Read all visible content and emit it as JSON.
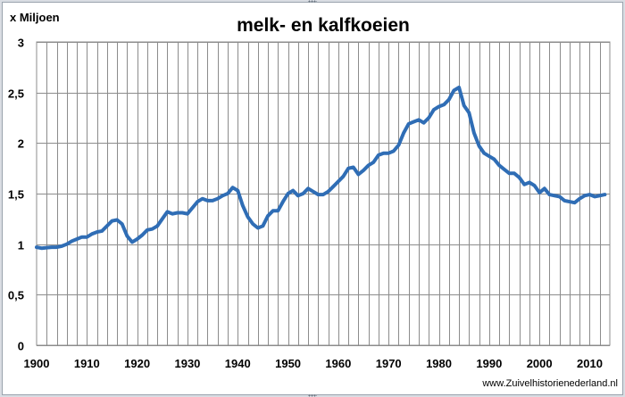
{
  "chart_data": {
    "type": "line",
    "title": "melk- en kalfkoeien",
    "unit_label": "x Miljoen",
    "ylim": [
      0,
      3
    ],
    "yticks": [
      "0",
      "0,5",
      "1",
      "1,5",
      "2",
      "2,5",
      "3"
    ],
    "xlim": [
      1900,
      2014
    ],
    "xticks": [
      "1900",
      "1910",
      "1920",
      "1930",
      "1940",
      "1950",
      "1960",
      "1970",
      "1980",
      "1990",
      "2000",
      "2010"
    ],
    "grid": true,
    "line_color": "#2f6db5",
    "series": [
      {
        "x": [
          1900,
          1901,
          1902,
          1903,
          1904,
          1905,
          1906,
          1907,
          1908,
          1909,
          1910,
          1911,
          1912,
          1913,
          1914,
          1915,
          1916,
          1917,
          1918,
          1919,
          1920,
          1921,
          1922,
          1923,
          1924,
          1925,
          1926,
          1927,
          1928,
          1929,
          1930,
          1931,
          1932,
          1933,
          1934,
          1935,
          1936,
          1937,
          1938,
          1939,
          1940,
          1941,
          1942,
          1943,
          1944,
          1945,
          1946,
          1947,
          1948,
          1949,
          1950,
          1951,
          1952,
          1953,
          1954,
          1955,
          1956,
          1957,
          1958,
          1959,
          1960,
          1961,
          1962,
          1963,
          1964,
          1965,
          1966,
          1967,
          1968,
          1969,
          1970,
          1971,
          1972,
          1973,
          1974,
          1975,
          1976,
          1977,
          1978,
          1979,
          1980,
          1981,
          1982,
          1983,
          1984,
          1985,
          1986,
          1987,
          1988,
          1989,
          1990,
          1991,
          1992,
          1993,
          1994,
          1995,
          1996,
          1997,
          1998,
          1999,
          2000,
          2001,
          2002,
          2003,
          2004,
          2005,
          2006,
          2007,
          2008,
          2009,
          2010,
          2011,
          2012,
          2013
        ],
        "values": [
          0.97,
          0.96,
          0.965,
          0.97,
          0.97,
          0.98,
          1.0,
          1.03,
          1.05,
          1.07,
          1.07,
          1.1,
          1.12,
          1.13,
          1.18,
          1.23,
          1.24,
          1.2,
          1.08,
          1.02,
          1.05,
          1.09,
          1.14,
          1.15,
          1.18,
          1.25,
          1.32,
          1.3,
          1.31,
          1.31,
          1.3,
          1.36,
          1.42,
          1.45,
          1.43,
          1.43,
          1.45,
          1.48,
          1.5,
          1.56,
          1.53,
          1.38,
          1.27,
          1.2,
          1.16,
          1.18,
          1.28,
          1.33,
          1.33,
          1.42,
          1.5,
          1.53,
          1.48,
          1.5,
          1.55,
          1.52,
          1.49,
          1.49,
          1.52,
          1.57,
          1.62,
          1.67,
          1.75,
          1.76,
          1.69,
          1.73,
          1.78,
          1.81,
          1.88,
          1.9,
          1.9,
          1.92,
          1.98,
          2.1,
          2.19,
          2.21,
          2.23,
          2.2,
          2.25,
          2.33,
          2.36,
          2.38,
          2.43,
          2.52,
          2.55,
          2.37,
          2.3,
          2.1,
          1.97,
          1.9,
          1.87,
          1.84,
          1.78,
          1.74,
          1.7,
          1.7,
          1.66,
          1.59,
          1.61,
          1.58,
          1.51,
          1.55,
          1.49,
          1.48,
          1.47,
          1.43,
          1.42,
          1.41,
          1.45,
          1.48,
          1.49,
          1.47,
          1.48,
          1.49
        ]
      }
    ]
  },
  "credit": "www.Zuivelhistorienederland.nl"
}
